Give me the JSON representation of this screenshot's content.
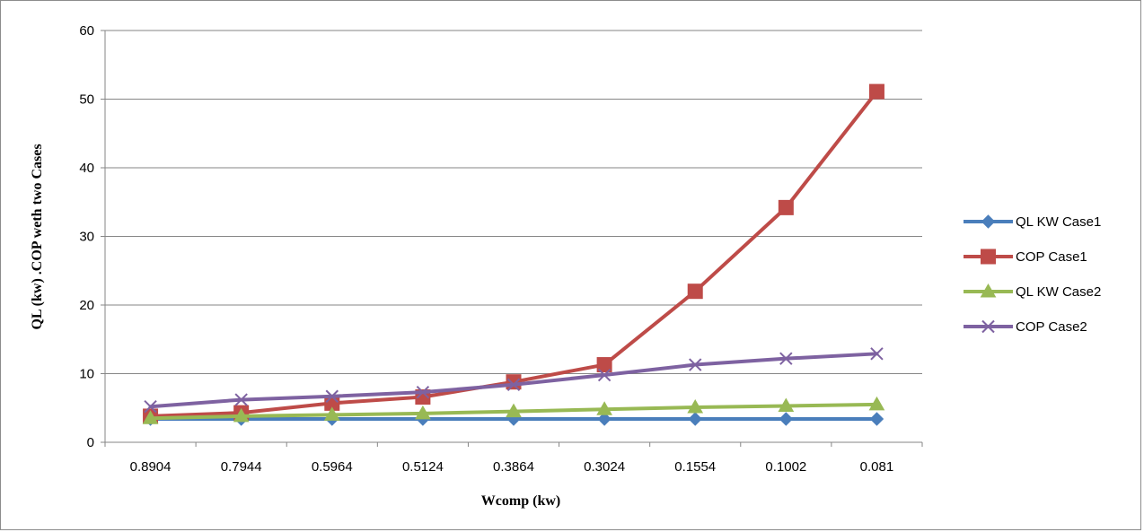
{
  "chart_data": {
    "type": "line",
    "title": "",
    "xlabel": "Wcomp (kw)",
    "ylabel": "QL (kw) .COP  weth two Cases",
    "categories": [
      "0.8904",
      "0.7944",
      "0.5964",
      "0.5124",
      "0.3864",
      "0.3024",
      "0.1554",
      "0.1002",
      "0.081"
    ],
    "ylim": [
      0,
      60
    ],
    "yticks": [
      0,
      10,
      20,
      30,
      40,
      50,
      60
    ],
    "grid": true,
    "legend_position": "right",
    "series": [
      {
        "name": "QL KW Case1",
        "color": "#4a7ebb",
        "marker": "diamond",
        "values": [
          3.4,
          3.4,
          3.4,
          3.4,
          3.4,
          3.4,
          3.4,
          3.4,
          3.4
        ]
      },
      {
        "name": "COP  Case1",
        "color": "#be4b48",
        "marker": "square",
        "values": [
          3.8,
          4.3,
          5.7,
          6.6,
          8.8,
          11.3,
          22.0,
          34.2,
          51.1
        ]
      },
      {
        "name": "QL KW Case2",
        "color": "#98b954",
        "marker": "triangle",
        "values": [
          3.5,
          3.8,
          4.0,
          4.2,
          4.5,
          4.8,
          5.1,
          5.3,
          5.5
        ]
      },
      {
        "name": "COP  Case2",
        "color": "#7e62a1",
        "marker": "x",
        "values": [
          5.2,
          6.2,
          6.7,
          7.3,
          8.4,
          9.8,
          11.3,
          12.2,
          12.9
        ]
      }
    ]
  }
}
